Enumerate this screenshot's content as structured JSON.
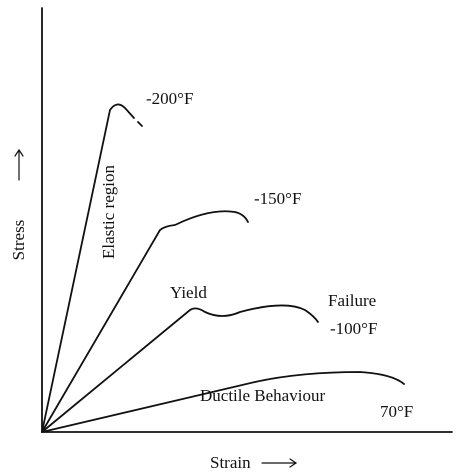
{
  "axes": {
    "y_label": "Stress",
    "x_label": "Strain"
  },
  "curves": [
    {
      "label": "-200°F"
    },
    {
      "label": "-150°F"
    },
    {
      "label": "-100°F"
    },
    {
      "label": "70°F"
    }
  ],
  "annotations": {
    "elastic": "Elastic region",
    "yield": "Yield",
    "failure": "Failure",
    "ductile": "Ductile Behaviour"
  }
}
